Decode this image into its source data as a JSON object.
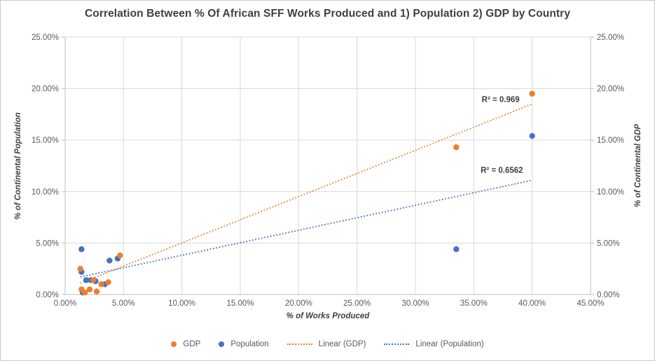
{
  "title": "Correlation Between % Of African SFF Works Produced and 1) Population 2) GDP by Country",
  "colors": {
    "gdp": "#ED7D31",
    "population": "#4472C4",
    "gridline": "#D9D9D9",
    "axis_line": "#BFBFBF",
    "tick_text": "#595959",
    "title_text": "#404040"
  },
  "chart_data": {
    "type": "scatter",
    "title": "Correlation Between % Of African SFF Works Produced and 1) Population 2) GDP by Country",
    "xlabel": "% of Works Produced",
    "ylabel_left": "% of Continental Population",
    "ylabel_right": "% of Continental GDP",
    "xlim": [
      0,
      45
    ],
    "ylim": [
      0,
      25
    ],
    "grid": true,
    "legend_position": "bottom",
    "x_tick_labels": [
      "0.00%",
      "5.00%",
      "10.00%",
      "15.00%",
      "20.00%",
      "25.00%",
      "30.00%",
      "35.00%",
      "40.00%",
      "45.00%"
    ],
    "y_tick_labels": [
      "0.00%",
      "5.00%",
      "10.00%",
      "15.00%",
      "20.00%",
      "25.00%"
    ],
    "tick_step": 5,
    "series": [
      {
        "name": "GDP",
        "color": "#ED7D31",
        "points": [
          [
            1.3,
            2.5
          ],
          [
            4.7,
            3.8
          ],
          [
            2.4,
            1.4
          ],
          [
            3.1,
            1.0
          ],
          [
            3.7,
            1.2
          ],
          [
            1.4,
            0.5
          ],
          [
            1.7,
            0.2
          ],
          [
            2.1,
            0.5
          ],
          [
            2.7,
            0.3
          ],
          [
            33.5,
            14.3
          ],
          [
            40.0,
            19.5
          ]
        ]
      },
      {
        "name": "Population",
        "color": "#4472C4",
        "points": [
          [
            1.4,
            4.4
          ],
          [
            3.8,
            3.3
          ],
          [
            4.5,
            3.5
          ],
          [
            1.4,
            2.2
          ],
          [
            1.8,
            1.4
          ],
          [
            2.2,
            1.4
          ],
          [
            2.6,
            1.3
          ],
          [
            3.4,
            1.0
          ],
          [
            1.5,
            0.2
          ],
          [
            33.5,
            4.4
          ],
          [
            40.0,
            15.4
          ]
        ]
      }
    ],
    "trendlines": [
      {
        "name": "Linear (GDP)",
        "color": "#ED7D31",
        "x1": 1.3,
        "y1": 1.1,
        "x2": 40.0,
        "y2": 18.5,
        "r2_label": "R² = 0.969",
        "label_x": 37.3,
        "label_y": 18.9
      },
      {
        "name": "Linear (Population)",
        "color": "#4472C4",
        "x1": 1.3,
        "y1": 1.7,
        "x2": 40.0,
        "y2": 11.1,
        "r2_label": "R² = 0.6562",
        "label_x": 37.4,
        "label_y": 12.0
      }
    ]
  },
  "legend": {
    "items": [
      {
        "label": "GDP",
        "marker": "dot",
        "color": "#ED7D31"
      },
      {
        "label": "Population",
        "marker": "dot",
        "color": "#4472C4"
      },
      {
        "label": "Linear (GDP)",
        "marker": "dash",
        "color": "#ED7D31"
      },
      {
        "label": "Linear (Population)",
        "marker": "dash",
        "color": "#4472C4"
      }
    ]
  }
}
